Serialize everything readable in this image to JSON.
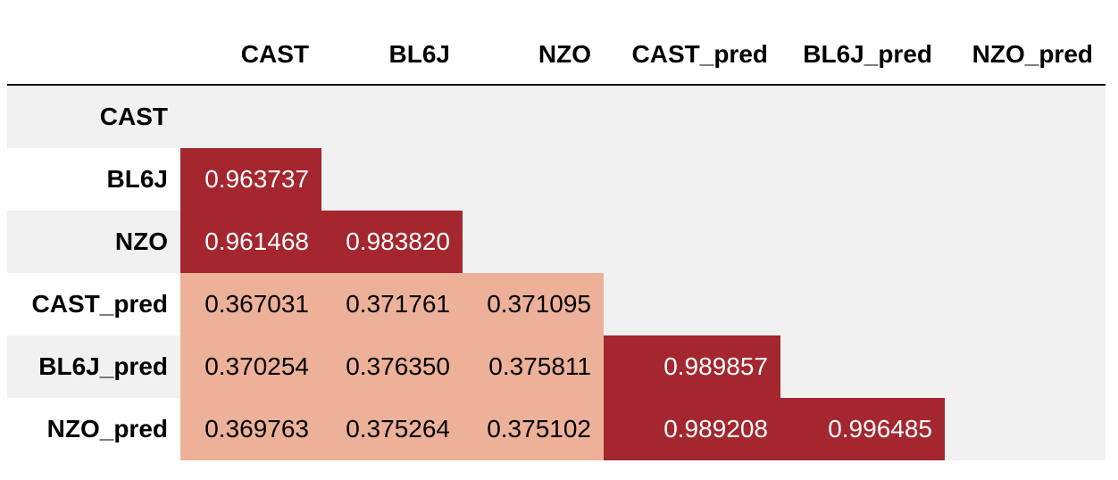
{
  "chart_data": {
    "type": "table",
    "columns": [
      "CAST",
      "BL6J",
      "NZO",
      "CAST_pred",
      "BL6J_pred",
      "NZO_pred"
    ],
    "rows": [
      {
        "label": "CAST",
        "values": [
          "",
          "",
          "",
          "",
          "",
          ""
        ]
      },
      {
        "label": "BL6J",
        "values": [
          "0.963737",
          "",
          "",
          "",
          "",
          ""
        ]
      },
      {
        "label": "NZO",
        "values": [
          "0.961468",
          "0.983820",
          "",
          "",
          "",
          ""
        ]
      },
      {
        "label": "CAST_pred",
        "values": [
          "0.367031",
          "0.371761",
          "0.371095",
          "",
          "",
          ""
        ]
      },
      {
        "label": "BL6J_pred",
        "values": [
          "0.370254",
          "0.376350",
          "0.375811",
          "0.989857",
          "",
          ""
        ]
      },
      {
        "label": "NZO_pred",
        "values": [
          "0.369763",
          "0.375264",
          "0.375102",
          "0.989208",
          "0.996485",
          ""
        ]
      }
    ],
    "colors": {
      "high": "#a4262f",
      "low": "#edb199",
      "empty": "#f1f1f1",
      "high_text": "#ffffff",
      "low_text": "#000000"
    }
  }
}
